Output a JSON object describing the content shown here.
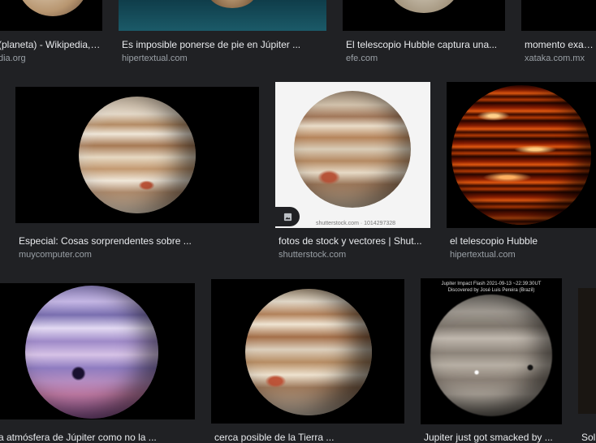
{
  "row1": [
    {
      "title": "(planeta) - Wikipedia, l...",
      "site": "dia.org"
    },
    {
      "title": "Es imposible ponerse de pie en Júpiter ...",
      "site": "hipertextual.com"
    },
    {
      "title": "El telescopio Hubble captura una...",
      "site": "efe.com"
    },
    {
      "title": "momento exacto",
      "site": "xataka.com.mx"
    }
  ],
  "row2": [
    {
      "title": "Especial: Cosas sorprendentes sobre ...",
      "site": "muycomputer.com"
    },
    {
      "title": "fotos de stock y vectores | Shut...",
      "site": "shutterstock.com",
      "watermark": "shutterstock.com · 1014297328"
    },
    {
      "title": "el telescopio Hubble",
      "site": "hipertextual.com"
    }
  ],
  "row3": [
    {
      "title": "a atmósfera de Júpiter como no la ..."
    },
    {
      "title": "cerca posible de la Tierra ..."
    },
    {
      "title": "Jupiter just got smacked by ...",
      "caption": "Jupiter Impact Flash 2021-09-13 ~22:39:30UT",
      "caption_sub": "Discovered by José Luis Pereira (Brazil)"
    },
    {
      "title": "Sol"
    }
  ],
  "colors": {
    "background": "#202124",
    "title": "#e8eaed",
    "site": "#9aa0a6"
  }
}
